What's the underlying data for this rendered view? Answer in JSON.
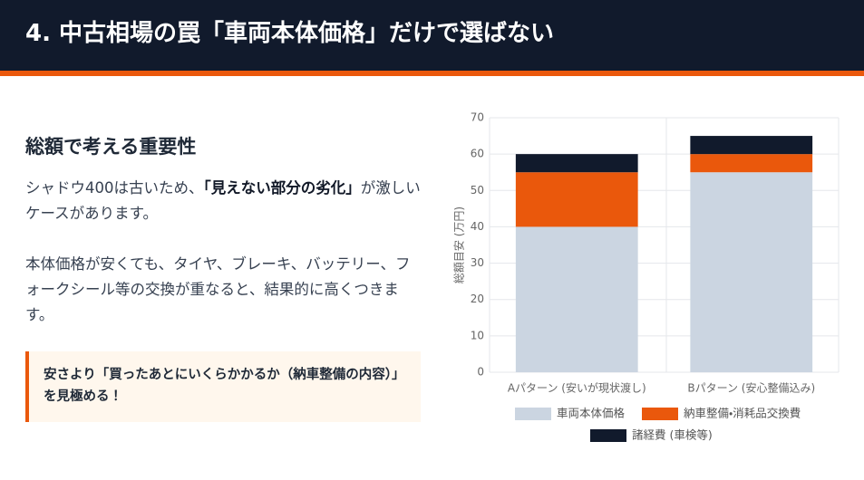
{
  "header": {
    "title": "4. 中古相場の罠「車両本体価格」だけで選ばない"
  },
  "content": {
    "heading": "総額で考える重要性",
    "paragraph1": {
      "before": "シャドウ400は古いため、",
      "emphasis": "「見えない部分の劣化」",
      "after": "が激しいケースがあります。"
    },
    "paragraph2": "本体価格が安くても、タイヤ、ブレーキ、バッテリー、フォークシール等の交換が重なると、結果的に高くつきます。",
    "callout": "安さより「買ったあとにいくらかかるか（納車整備の内容）」を見極める！"
  },
  "chart_data": {
    "type": "bar",
    "stacked": true,
    "categories": [
      "Aパターン (安いが現状渡し)",
      "Bパターン (安心整備込み)"
    ],
    "series": [
      {
        "name": "車両本体価格",
        "color": "#cbd5e1",
        "values": [
          40,
          55
        ]
      },
      {
        "name": "納車整備・消耗品交換費",
        "color": "#ea580c",
        "values": [
          15,
          5
        ]
      },
      {
        "name": "諸経費 (車検等)",
        "color": "#111a2c",
        "values": [
          5,
          5
        ]
      }
    ],
    "y_label": "総額目安 (万円)",
    "ylim": [
      0,
      70
    ],
    "yticks": [
      0,
      10,
      20,
      30,
      40,
      50,
      60,
      70
    ],
    "grid": true,
    "legend": "bottom"
  }
}
